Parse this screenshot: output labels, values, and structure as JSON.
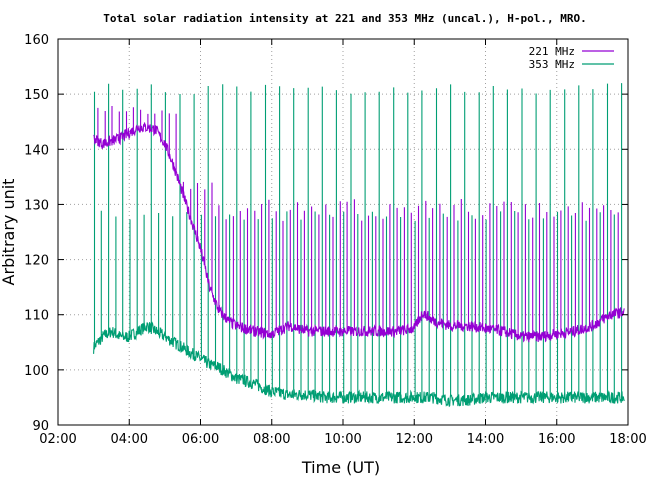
{
  "chart_data": {
    "type": "line",
    "title": "Total solar radiation intensity at 221 and 353 MHz (uncal.), H-pol., MRO.",
    "xlabel": "Time (UT)",
    "ylabel": "Arbitrary unit",
    "xlim": [
      2,
      18
    ],
    "ylim": [
      90,
      160
    ],
    "xticks": [
      2,
      4,
      6,
      8,
      10,
      12,
      14,
      16,
      18
    ],
    "xtick_labels": [
      "02:00",
      "04:00",
      "06:00",
      "08:00",
      "10:00",
      "12:00",
      "14:00",
      "16:00",
      "18:00"
    ],
    "yticks": [
      90,
      100,
      110,
      120,
      130,
      140,
      150,
      160
    ],
    "ytick_labels": [
      "90",
      "100",
      "110",
      "120",
      "130",
      "140",
      "150",
      "160"
    ],
    "grid": true,
    "legend_position": "top-right",
    "series": [
      {
        "name": "221 MHz",
        "color": "#9400d3",
        "x": [
          3.0,
          3.25,
          3.5,
          3.75,
          4.0,
          4.25,
          4.5,
          4.75,
          5.0,
          5.25,
          5.5,
          5.75,
          6.0,
          6.25,
          6.5,
          6.75,
          7.0,
          7.5,
          8.0,
          8.5,
          9.0,
          9.5,
          10.0,
          10.5,
          11.0,
          11.5,
          12.0,
          12.25,
          12.5,
          13.0,
          13.5,
          14.0,
          14.5,
          15.0,
          15.5,
          16.0,
          16.5,
          17.0,
          17.5,
          17.9
        ],
        "y": [
          142,
          141,
          141.5,
          142,
          143,
          144,
          144,
          143.5,
          141,
          137,
          132,
          127,
          122,
          115,
          111,
          109,
          108,
          107,
          106.5,
          108,
          107,
          107,
          107,
          107,
          107,
          107,
          107.5,
          110.5,
          109,
          108,
          108,
          107.5,
          107,
          106,
          106,
          106.5,
          107,
          108,
          110,
          110.5
        ]
      },
      {
        "name": "353 MHz",
        "color": "#009e73",
        "x": [
          3.0,
          3.25,
          3.5,
          3.75,
          4.0,
          4.25,
          4.5,
          4.75,
          5.0,
          5.25,
          5.5,
          5.75,
          6.0,
          6.25,
          6.5,
          6.75,
          7.0,
          7.5,
          8.0,
          8.5,
          9.0,
          9.5,
          10.0,
          10.5,
          11.0,
          11.5,
          12.0,
          12.5,
          13.0,
          13.5,
          14.0,
          14.5,
          15.0,
          15.5,
          16.0,
          16.5,
          17.0,
          17.5,
          17.9
        ],
        "y": [
          104,
          106,
          107,
          106,
          106,
          107,
          108,
          107,
          106,
          105,
          104,
          103,
          102,
          101,
          100.5,
          99.5,
          98.5,
          97.5,
          96,
          95.5,
          95.5,
          95,
          95,
          95,
          95,
          95,
          95,
          95,
          94.5,
          94.5,
          95,
          95,
          95,
          95,
          95,
          95,
          95,
          95,
          95
        ]
      }
    ],
    "periodic_spikes": {
      "description_values": {
        "221 MHz_peak": [
          140,
          130,
          124
        ],
        "353 MHz_peak": [
          151,
          128
        ]
      }
    }
  }
}
